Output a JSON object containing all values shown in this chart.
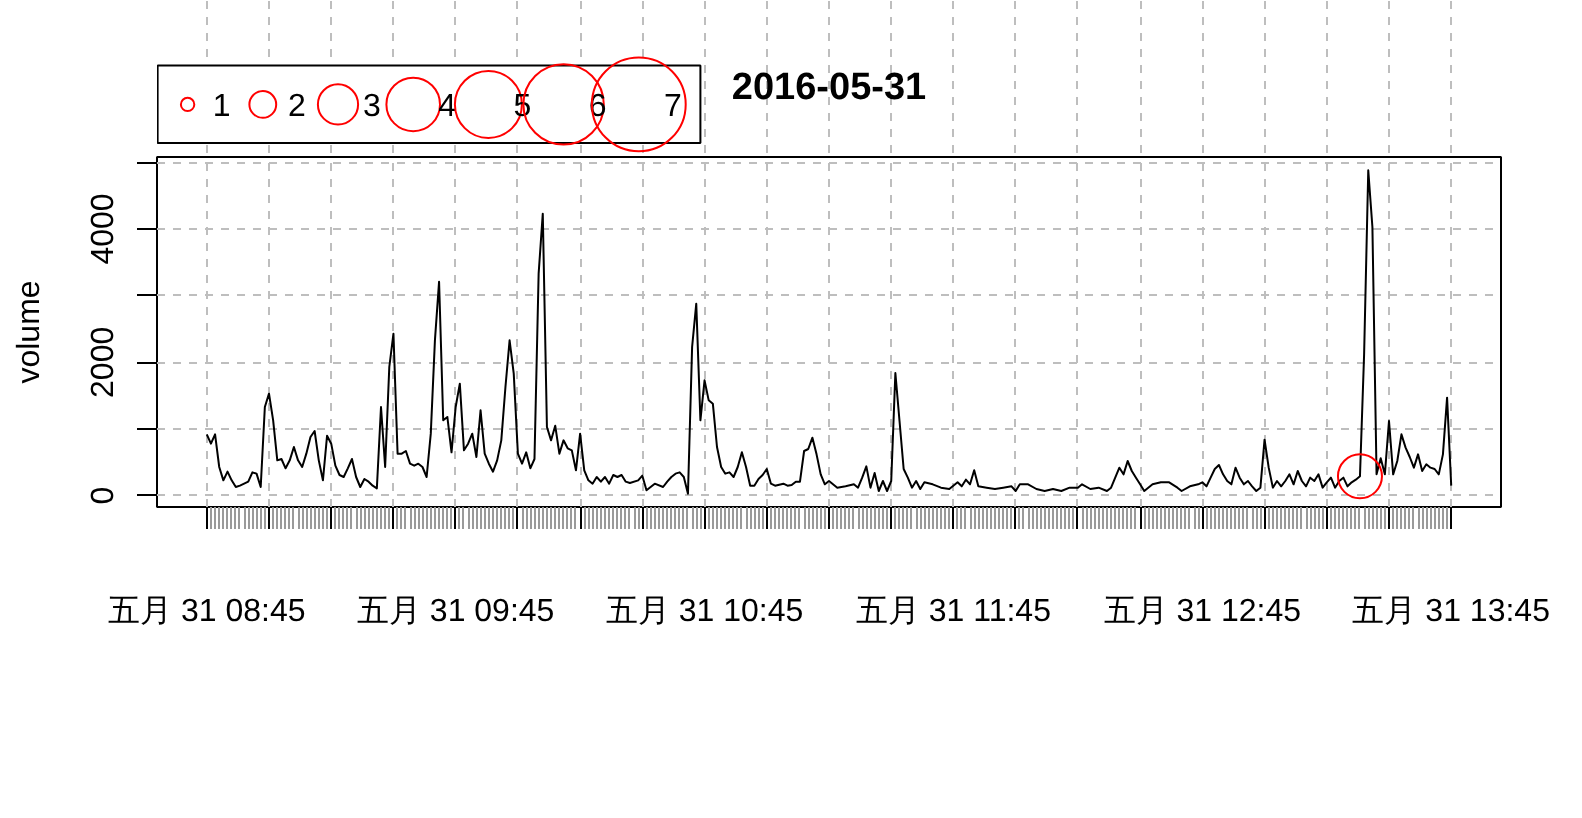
{
  "chart_data": {
    "type": "line",
    "title": "2016-05-31",
    "ylabel": "volume",
    "xlim": [
      "2016-05-31T08:33",
      "2016-05-31T13:57"
    ],
    "ylim": [
      -170,
      5080
    ],
    "xticks": [
      {
        "value": "2016-05-31T08:45",
        "label": "五月 31 08:45"
      },
      {
        "value": "2016-05-31T09:00",
        "label": null
      },
      {
        "value": "2016-05-31T09:15",
        "label": null
      },
      {
        "value": "2016-05-31T09:30",
        "label": null
      },
      {
        "value": "2016-05-31T09:45",
        "label": "五月 31 09:45"
      },
      {
        "value": "2016-05-31T10:00",
        "label": null
      },
      {
        "value": "2016-05-31T10:15",
        "label": null
      },
      {
        "value": "2016-05-31T10:30",
        "label": null
      },
      {
        "value": "2016-05-31T10:45",
        "label": "五月 31 10:45"
      },
      {
        "value": "2016-05-31T11:00",
        "label": null
      },
      {
        "value": "2016-05-31T11:15",
        "label": null
      },
      {
        "value": "2016-05-31T11:30",
        "label": null
      },
      {
        "value": "2016-05-31T11:45",
        "label": "五月 31 11:45"
      },
      {
        "value": "2016-05-31T12:00",
        "label": null
      },
      {
        "value": "2016-05-31T12:15",
        "label": null
      },
      {
        "value": "2016-05-31T12:30",
        "label": null
      },
      {
        "value": "2016-05-31T12:45",
        "label": "五月 31 12:45"
      },
      {
        "value": "2016-05-31T13:00",
        "label": null
      },
      {
        "value": "2016-05-31T13:15",
        "label": null
      },
      {
        "value": "2016-05-31T13:30",
        "label": null
      },
      {
        "value": "2016-05-31T13:45",
        "label": "五月 31 13:45"
      }
    ],
    "yticks": [
      0,
      {
        "value": 1000,
        "label": null
      },
      2000,
      {
        "value": 3000,
        "label": null
      },
      4000,
      {
        "value": 5000,
        "label": null
      }
    ],
    "grid": true,
    "size_legend": [
      {
        "value": 1,
        "label": "1"
      },
      {
        "value": 4,
        "label": "2"
      },
      {
        "value": 9,
        "label": "3"
      },
      {
        "value": 16,
        "label": "4"
      },
      {
        "value": 25,
        "label": "5"
      },
      {
        "value": 36,
        "label": "6"
      },
      {
        "value": 49,
        "label": "7"
      }
    ],
    "series": [
      {
        "color": "#000000",
        "x": [
          "2016-05-31T08:45",
          "2016-05-31T08:46",
          "2016-05-31T08:47",
          "2016-05-31T08:48",
          "2016-05-31T08:49",
          "2016-05-31T08:50",
          "2016-05-31T08:51",
          "2016-05-31T08:52",
          "2016-05-31T08:53",
          "2016-05-31T08:55",
          "2016-05-31T08:56",
          "2016-05-31T08:57",
          "2016-05-31T08:58",
          "2016-05-31T08:59",
          "2016-05-31T09:00",
          "2016-05-31T09:01",
          "2016-05-31T09:02",
          "2016-05-31T09:03",
          "2016-05-31T09:04",
          "2016-05-31T09:05",
          "2016-05-31T09:06",
          "2016-05-31T09:07",
          "2016-05-31T09:08",
          "2016-05-31T09:09",
          "2016-05-31T09:10",
          "2016-05-31T09:11",
          "2016-05-31T09:12",
          "2016-05-31T09:13",
          "2016-05-31T09:14",
          "2016-05-31T09:15",
          "2016-05-31T09:16",
          "2016-05-31T09:17",
          "2016-05-31T09:18",
          "2016-05-31T09:19",
          "2016-05-31T09:20",
          "2016-05-31T09:21",
          "2016-05-31T09:22",
          "2016-05-31T09:23",
          "2016-05-31T09:24",
          "2016-05-31T09:25",
          "2016-05-31T09:26",
          "2016-05-31T09:27",
          "2016-05-31T09:28",
          "2016-05-31T09:29",
          "2016-05-31T09:30",
          "2016-05-31T09:31",
          "2016-05-31T09:32",
          "2016-05-31T09:33",
          "2016-05-31T09:34",
          "2016-05-31T09:35",
          "2016-05-31T09:36",
          "2016-05-31T09:37",
          "2016-05-31T09:38",
          "2016-05-31T09:39",
          "2016-05-31T09:40",
          "2016-05-31T09:41",
          "2016-05-31T09:42",
          "2016-05-31T09:43",
          "2016-05-31T09:44",
          "2016-05-31T09:45",
          "2016-05-31T09:46",
          "2016-05-31T09:47",
          "2016-05-31T09:48",
          "2016-05-31T09:49",
          "2016-05-31T09:50",
          "2016-05-31T09:51",
          "2016-05-31T09:52",
          "2016-05-31T09:53",
          "2016-05-31T09:54",
          "2016-05-31T09:55",
          "2016-05-31T09:56",
          "2016-05-31T09:57",
          "2016-05-31T09:58",
          "2016-05-31T09:59",
          "2016-05-31T10:00",
          "2016-05-31T10:01",
          "2016-05-31T10:02",
          "2016-05-31T10:03",
          "2016-05-31T10:04",
          "2016-05-31T10:05",
          "2016-05-31T10:06",
          "2016-05-31T10:07",
          "2016-05-31T10:08",
          "2016-05-31T10:09",
          "2016-05-31T10:10",
          "2016-05-31T10:11",
          "2016-05-31T10:12",
          "2016-05-31T10:13",
          "2016-05-31T10:14",
          "2016-05-31T10:15",
          "2016-05-31T10:16",
          "2016-05-31T10:17",
          "2016-05-31T10:18",
          "2016-05-31T10:19",
          "2016-05-31T10:20",
          "2016-05-31T10:21",
          "2016-05-31T10:22",
          "2016-05-31T10:23",
          "2016-05-31T10:24",
          "2016-05-31T10:25",
          "2016-05-31T10:26",
          "2016-05-31T10:27",
          "2016-05-31T10:29",
          "2016-05-31T10:30",
          "2016-05-31T10:31",
          "2016-05-31T10:33",
          "2016-05-31T10:35",
          "2016-05-31T10:36",
          "2016-05-31T10:37",
          "2016-05-31T10:38",
          "2016-05-31T10:39",
          "2016-05-31T10:40",
          "2016-05-31T10:41",
          "2016-05-31T10:42",
          "2016-05-31T10:43",
          "2016-05-31T10:44",
          "2016-05-31T10:45",
          "2016-05-31T10:46",
          "2016-05-31T10:47",
          "2016-05-31T10:48",
          "2016-05-31T10:49",
          "2016-05-31T10:50",
          "2016-05-31T10:51",
          "2016-05-31T10:52",
          "2016-05-31T10:53",
          "2016-05-31T10:54",
          "2016-05-31T10:55",
          "2016-05-31T10:56",
          "2016-05-31T10:57",
          "2016-05-31T10:58",
          "2016-05-31T10:59",
          "2016-05-31T11:00",
          "2016-05-31T11:01",
          "2016-05-31T11:02",
          "2016-05-31T11:04",
          "2016-05-31T11:05",
          "2016-05-31T11:06",
          "2016-05-31T11:07",
          "2016-05-31T11:08",
          "2016-05-31T11:09",
          "2016-05-31T11:10",
          "2016-05-31T11:11",
          "2016-05-31T11:12",
          "2016-05-31T11:13",
          "2016-05-31T11:14",
          "2016-05-31T11:15",
          "2016-05-31T11:17",
          "2016-05-31T11:19",
          "2016-05-31T11:21",
          "2016-05-31T11:22",
          "2016-05-31T11:23",
          "2016-05-31T11:24",
          "2016-05-31T11:25",
          "2016-05-31T11:26",
          "2016-05-31T11:27",
          "2016-05-31T11:28",
          "2016-05-31T11:29",
          "2016-05-31T11:30",
          "2016-05-31T11:31",
          "2016-05-31T11:32",
          "2016-05-31T11:33",
          "2016-05-31T11:34",
          "2016-05-31T11:35",
          "2016-05-31T11:36",
          "2016-05-31T11:37",
          "2016-05-31T11:38",
          "2016-05-31T11:40",
          "2016-05-31T11:42",
          "2016-05-31T11:44",
          "2016-05-31T11:46",
          "2016-05-31T11:47",
          "2016-05-31T11:48",
          "2016-05-31T11:49",
          "2016-05-31T11:50",
          "2016-05-31T11:51",
          "2016-05-31T11:53",
          "2016-05-31T11:55",
          "2016-05-31T11:57",
          "2016-05-31T11:59",
          "2016-05-31T12:00",
          "2016-05-31T12:01",
          "2016-05-31T12:03",
          "2016-05-31T12:05",
          "2016-05-31T12:07",
          "2016-05-31T12:09",
          "2016-05-31T12:11",
          "2016-05-31T12:13",
          "2016-05-31T12:15",
          "2016-05-31T12:16",
          "2016-05-31T12:18",
          "2016-05-31T12:20",
          "2016-05-31T12:22",
          "2016-05-31T12:23",
          "2016-05-31T12:24",
          "2016-05-31T12:25",
          "2016-05-31T12:26",
          "2016-05-31T12:27",
          "2016-05-31T12:28",
          "2016-05-31T12:29",
          "2016-05-31T12:30",
          "2016-05-31T12:31",
          "2016-05-31T12:33",
          "2016-05-31T12:35",
          "2016-05-31T12:37",
          "2016-05-31T12:39",
          "2016-05-31T12:40",
          "2016-05-31T12:42",
          "2016-05-31T12:44",
          "2016-05-31T12:45",
          "2016-05-31T12:46",
          "2016-05-31T12:47",
          "2016-05-31T12:48",
          "2016-05-31T12:49",
          "2016-05-31T12:50",
          "2016-05-31T12:51",
          "2016-05-31T12:52",
          "2016-05-31T12:53",
          "2016-05-31T12:54",
          "2016-05-31T12:55",
          "2016-05-31T12:56",
          "2016-05-31T12:57",
          "2016-05-31T12:58",
          "2016-05-31T12:59",
          "2016-05-31T13:00",
          "2016-05-31T13:01",
          "2016-05-31T13:02",
          "2016-05-31T13:03",
          "2016-05-31T13:04",
          "2016-05-31T13:05",
          "2016-05-31T13:06",
          "2016-05-31T13:07",
          "2016-05-31T13:08",
          "2016-05-31T13:09",
          "2016-05-31T13:10",
          "2016-05-31T13:11",
          "2016-05-31T13:12",
          "2016-05-31T13:13",
          "2016-05-31T13:14",
          "2016-05-31T13:15",
          "2016-05-31T13:16",
          "2016-05-31T13:17",
          "2016-05-31T13:18",
          "2016-05-31T13:19",
          "2016-05-31T13:20",
          "2016-05-31T13:21",
          "2016-05-31T13:22",
          "2016-05-31T13:23",
          "2016-05-31T13:24",
          "2016-05-31T13:25",
          "2016-05-31T13:26",
          "2016-05-31T13:27",
          "2016-05-31T13:28",
          "2016-05-31T13:29",
          "2016-05-31T13:30",
          "2016-05-31T13:31",
          "2016-05-31T13:32",
          "2016-05-31T13:33",
          "2016-05-31T13:34",
          "2016-05-31T13:35",
          "2016-05-31T13:36",
          "2016-05-31T13:37",
          "2016-05-31T13:38",
          "2016-05-31T13:39",
          "2016-05-31T13:40",
          "2016-05-31T13:41",
          "2016-05-31T13:42",
          "2016-05-31T13:43",
          "2016-05-31T13:44",
          "2016-05-31T13:45"
        ],
        "values": [
          920,
          780,
          920,
          430,
          230,
          360,
          230,
          130,
          150,
          210,
          350,
          330,
          130,
          1330,
          1530,
          1130,
          530,
          550,
          410,
          530,
          730,
          530,
          430,
          630,
          880,
          970,
          530,
          230,
          900,
          780,
          450,
          310,
          280,
          410,
          550,
          280,
          130,
          250,
          210,
          150,
          110,
          1330,
          430,
          1930,
          2430,
          630,
          630,
          670,
          480,
          450,
          480,
          430,
          280,
          930,
          2330,
          3210,
          1130,
          1180,
          650,
          1330,
          1680,
          680,
          780,
          930,
          580,
          1280,
          630,
          480,
          360,
          530,
          830,
          1630,
          2330,
          1830,
          630,
          480,
          650,
          410,
          550,
          3330,
          4230,
          1030,
          830,
          1050,
          630,
          830,
          710,
          680,
          380,
          930,
          380,
          230,
          180,
          280,
          210,
          280,
          180,
          310,
          280,
          310,
          210,
          190,
          230,
          300,
          80,
          180,
          130,
          210,
          280,
          330,
          350,
          280,
          30,
          2230,
          2880,
          1130,
          1730,
          1430,
          1380,
          730,
          430,
          330,
          350,
          280,
          430,
          650,
          430,
          150,
          150,
          250,
          310,
          400,
          180,
          150,
          180,
          150,
          160,
          210,
          210,
          670,
          700,
          870,
          620,
          320,
          170,
          220,
          120,
          140,
          170,
          120,
          270,
          440,
          120,
          340,
          70,
          220,
          70,
          220,
          1840,
          1120,
          400,
          270,
          120,
          220,
          100,
          200,
          170,
          120,
          100,
          200,
          140,
          240,
          170,
          380,
          140,
          120,
          100,
          120,
          140,
          70,
          170,
          170,
          100,
          70,
          100,
          70,
          120,
          120,
          170,
          100,
          120,
          70,
          120,
          270,
          420,
          320,
          520,
          370,
          270,
          170,
          70,
          170,
          200,
          200,
          120,
          70,
          140,
          170,
          200,
          140,
          270,
          400,
          460,
          320,
          220,
          170,
          420,
          270,
          170,
          220,
          140,
          70,
          120,
          840,
          420,
          120,
          220,
          140,
          220,
          320,
          170,
          370,
          220,
          140,
          270,
          220,
          320,
          120,
          200,
          270,
          120,
          220,
          270,
          140,
          200,
          240,
          290,
          2120,
          4880,
          4030,
          320,
          560,
          320,
          1120,
          320,
          520,
          920,
          720,
          580,
          420,
          620,
          370,
          470,
          420,
          400,
          320,
          620,
          1470,
          150
        ]
      },
      {
        "type": "bubble",
        "color": "#ff0000",
        "x": [
          "2016-05-31T13:23"
        ],
        "values": [
          290
        ],
        "sizes": [
          10.8
        ]
      }
    ]
  }
}
